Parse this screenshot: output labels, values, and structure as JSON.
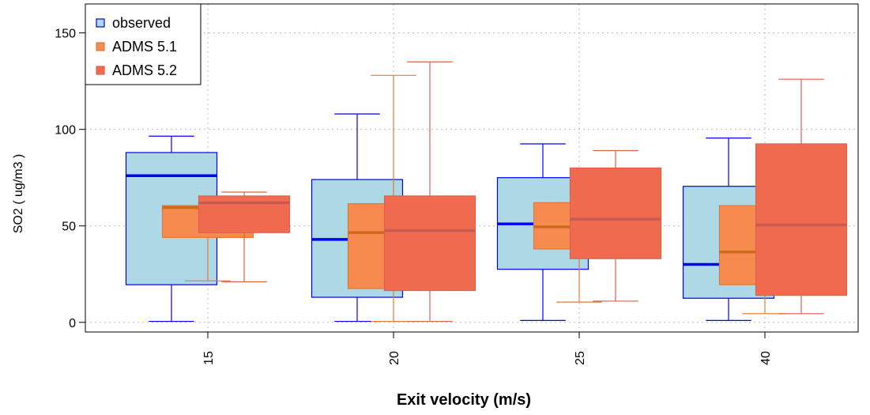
{
  "chart_data": {
    "type": "boxplot",
    "xlabel": "Exit velocity (m/s)",
    "ylabel": "SO2 ( ug/m3 )",
    "categories": [
      "15",
      "20",
      "25",
      "40"
    ],
    "ylim": [
      -5,
      165
    ],
    "yticks": [
      0,
      50,
      100,
      150
    ],
    "grid": true,
    "legend": {
      "placement": "top-left"
    },
    "series": [
      {
        "name": "observed",
        "fill": "#add8e6",
        "stroke": "#0000ff",
        "median_color": "#0000ff",
        "boxes": [
          {
            "min": 0.5,
            "q1": 19.5,
            "median": 76,
            "q3": 88,
            "max": 96.5
          },
          {
            "min": 0.5,
            "q1": 13,
            "median": 43,
            "q3": 74,
            "max": 108
          },
          {
            "min": 1,
            "q1": 27.5,
            "median": 51,
            "q3": 75,
            "max": 92.5
          },
          {
            "min": 1,
            "q1": 12.5,
            "median": 30,
            "q3": 70.5,
            "max": 95.5
          }
        ]
      },
      {
        "name": "ADMS 5.1",
        "fill": "#f78a4f",
        "stroke": "#e07b39",
        "median_color": "#cc6b1a",
        "boxes": [
          {
            "min": 21.5,
            "q1": 44,
            "median": 59.5,
            "q3": 60.5,
            "max": 60.5
          },
          {
            "min": 0.5,
            "q1": 17.5,
            "median": 46.5,
            "q3": 61.5,
            "max": 128
          },
          {
            "min": 10.5,
            "q1": 38,
            "median": 49.5,
            "q3": 62,
            "max": 62
          },
          {
            "min": 4.5,
            "q1": 19.5,
            "median": 36.5,
            "q3": 60.5,
            "max": 60.5
          }
        ]
      },
      {
        "name": "ADMS 5.2",
        "fill": "#f06a50",
        "stroke": "#d9634c",
        "median_color": "#c85a50",
        "boxes": [
          {
            "min": 21,
            "q1": 46.5,
            "median": 62,
            "q3": 65.5,
            "max": 67.5
          },
          {
            "min": 0.5,
            "q1": 16.5,
            "median": 47.5,
            "q3": 65.5,
            "max": 135
          },
          {
            "min": 11,
            "q1": 33,
            "median": 53.5,
            "q3": 80,
            "max": 89
          },
          {
            "min": 4.5,
            "q1": 14,
            "median": 50.5,
            "q3": 92.5,
            "max": 126
          }
        ]
      }
    ]
  }
}
